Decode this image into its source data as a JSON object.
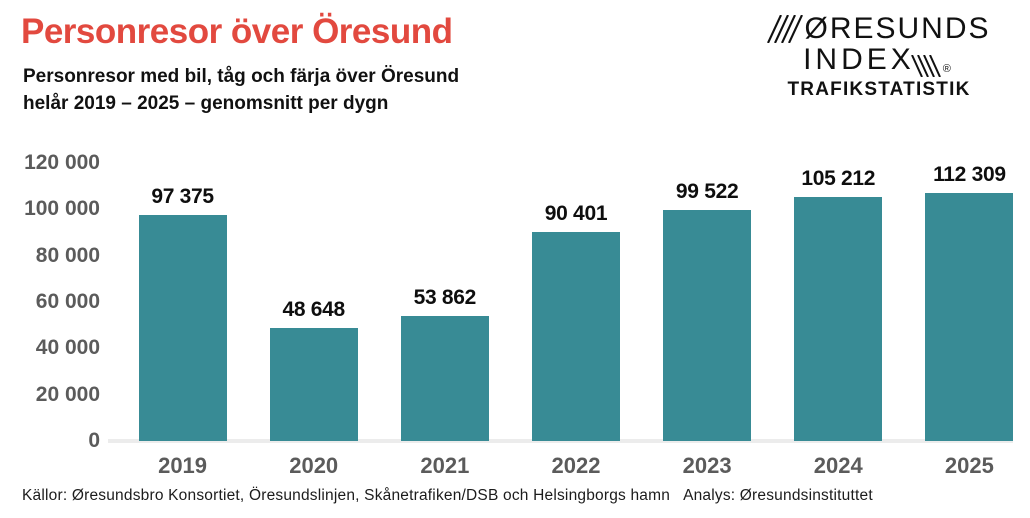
{
  "header": {
    "title": "Personresor över Öresund",
    "subtitle_line1": "Personresor med bil, tåg och färja över Öresund",
    "subtitle_line2": "helår 2019 – 2025 – genomsnitt per dygn"
  },
  "logo": {
    "line1": "ØRESUNDS",
    "line2": "INDEX",
    "registered": "®",
    "tagline": "TRAFIKSTATISTIK"
  },
  "footer": {
    "sources": "Källor: Øresundsbro Konsortiet, Öresundslinjen, Skånetrafiken/DSB och Helsingborgs hamn",
    "analysis": "Analys: Øresundsinstituttet"
  },
  "colors": {
    "title_red": "#E2493F",
    "bar_teal": "#388B95",
    "axis_label_gray": "#5B5B5B",
    "baseline_gray": "#ECECEC",
    "value_label_black": "#0E0E0E"
  },
  "chart_data": {
    "type": "bar",
    "title": "Personresor över Öresund",
    "xlabel": "",
    "ylabel": "",
    "categories": [
      "2019",
      "2020",
      "2021",
      "2022",
      "2023",
      "2024",
      "2025"
    ],
    "values": [
      97375,
      48648,
      53862,
      90401,
      99522,
      105212,
      112309
    ],
    "value_labels": [
      "97 375",
      "48 648",
      "53 862",
      "90 401",
      "99 522",
      "105 212",
      "112 309"
    ],
    "ylim": [
      0,
      120000
    ],
    "ytick_step": 20000,
    "ytick_labels": [
      "0",
      "20 000",
      "40 000",
      "60 000",
      "80 000",
      "100 000",
      "120 000"
    ],
    "grid": false,
    "legend": false,
    "bar_color": "#388B95"
  }
}
